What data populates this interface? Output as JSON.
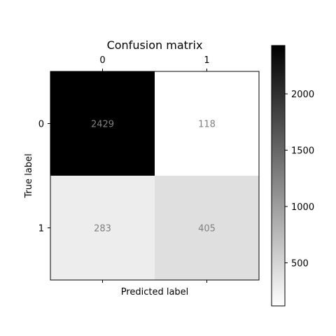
{
  "chart_data": {
    "type": "heatmap",
    "title": "Confusion matrix",
    "xlabel": "Predicted label",
    "ylabel": "True label",
    "x_categories": [
      "0",
      "1"
    ],
    "y_categories": [
      "0",
      "1"
    ],
    "matrix": [
      [
        2429,
        118
      ],
      [
        283,
        405
      ]
    ],
    "colormap": "Greys",
    "value_range": [
      118,
      2429
    ],
    "colorbar_ticks": [
      "500",
      "1000",
      "1500",
      "2000"
    ],
    "colorbar_tick_values": [
      500,
      1000,
      1500,
      2000
    ],
    "cell_text_color": "#808080",
    "x_ticks_position": "top"
  }
}
